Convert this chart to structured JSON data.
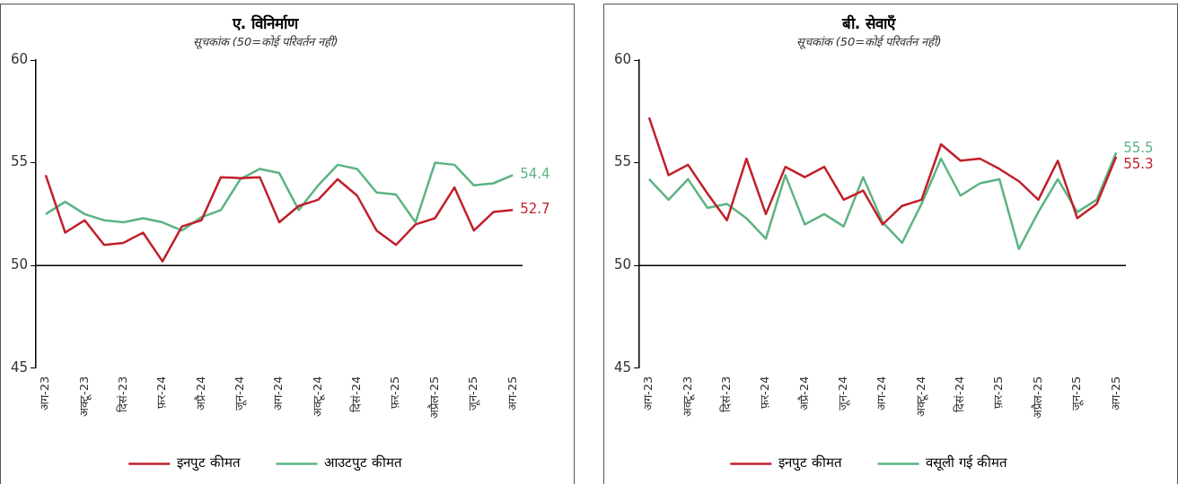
{
  "chart_data": [
    {
      "type": "line",
      "title": "ए. विनिर्माण",
      "subtitle": "सूचकांक (50=कोई परिवर्तन नहीं)",
      "categories": [
        "अग-23",
        null,
        "अक्टू-23",
        null,
        "दिसं-23",
        null,
        "फ़र-24",
        null,
        "अप्रै-24",
        null,
        "जून-24",
        null,
        "अग-24",
        null,
        "अक्टू-24",
        null,
        "दिसं-24",
        null,
        "फ़र-25",
        null,
        "अप्रैल-25",
        null,
        "जून-25",
        null,
        "अग-25"
      ],
      "series": [
        {
          "name": "इनपुट कीमत",
          "color": "#c0202a",
          "values": [
            54.4,
            51.6,
            52.2,
            51.0,
            51.1,
            51.6,
            50.2,
            51.9,
            52.2,
            54.3,
            54.25,
            54.3,
            52.1,
            52.9,
            53.2,
            54.2,
            53.4,
            51.7,
            51.0,
            52.0,
            52.3,
            53.8,
            51.7,
            52.6,
            52.7
          ],
          "value_labels": [
            null,
            null,
            null,
            null,
            null,
            null,
            null,
            null,
            null,
            null,
            null,
            null,
            null,
            null,
            null,
            null,
            null,
            null,
            null,
            null,
            null,
            null,
            null,
            null,
            "52.7"
          ]
        },
        {
          "name": "आउटपुट कीमत",
          "color": "#5db383",
          "values": [
            52.5,
            53.1,
            52.5,
            52.2,
            52.1,
            52.3,
            52.1,
            51.7,
            52.35,
            52.7,
            54.2,
            54.7,
            54.5,
            52.7,
            53.9,
            54.9,
            54.7,
            53.55,
            53.45,
            52.1,
            55.0,
            54.9,
            53.9,
            54.0,
            54.4
          ],
          "value_labels": [
            null,
            null,
            null,
            null,
            null,
            null,
            null,
            null,
            null,
            null,
            null,
            null,
            null,
            null,
            null,
            null,
            null,
            null,
            null,
            null,
            null,
            null,
            null,
            null,
            "54.4"
          ]
        }
      ],
      "ylim": [
        45,
        60
      ],
      "yticks": [
        45,
        50,
        55,
        60
      ],
      "grid": false,
      "legend": "bottom",
      "ref_lines": [
        {
          "axis": "y",
          "value": 50,
          "color": "#000000"
        }
      ]
    },
    {
      "type": "line",
      "title": "बी. सेवाएँ",
      "subtitle": "सूचकांक (50=कोई परिवर्तन नहीं)",
      "categories": [
        "अग-23",
        null,
        "अक्टू-23",
        null,
        "दिसं-23",
        null,
        "फ़र-24",
        null,
        "अप्रै-24",
        null,
        "जून-24",
        null,
        "अग-24",
        null,
        "अक्टू-24",
        null,
        "दिसं-24",
        null,
        "फ़र-25",
        null,
        "अप्रैल-25",
        null,
        "जून-25",
        null,
        "अग-25"
      ],
      "series": [
        {
          "name": "इनपुट कीमत",
          "color": "#c0202a",
          "values": [
            57.2,
            54.4,
            54.9,
            53.5,
            52.2,
            55.2,
            52.5,
            54.8,
            54.3,
            54.8,
            53.2,
            53.65,
            52.0,
            52.9,
            53.2,
            55.9,
            55.1,
            55.2,
            54.7,
            54.1,
            53.2,
            55.1,
            52.3,
            53.0,
            55.3
          ],
          "value_labels": [
            null,
            null,
            null,
            null,
            null,
            null,
            null,
            null,
            null,
            null,
            null,
            null,
            null,
            null,
            null,
            null,
            null,
            null,
            null,
            null,
            null,
            null,
            null,
            null,
            "55.3"
          ]
        },
        {
          "name": "वसूली गई कीमत",
          "color": "#5db383",
          "values": [
            54.2,
            53.2,
            54.2,
            52.8,
            53.0,
            52.3,
            51.3,
            54.4,
            52.0,
            52.5,
            51.9,
            54.3,
            52.1,
            51.1,
            53.0,
            55.2,
            53.4,
            54.0,
            54.2,
            50.8,
            52.6,
            54.2,
            52.6,
            53.2,
            55.5
          ],
          "value_labels": [
            null,
            null,
            null,
            null,
            null,
            null,
            null,
            null,
            null,
            null,
            null,
            null,
            null,
            null,
            null,
            null,
            null,
            null,
            null,
            null,
            null,
            null,
            null,
            null,
            "55.5"
          ]
        }
      ],
      "ylim": [
        45,
        60
      ],
      "yticks": [
        45,
        50,
        55,
        60
      ],
      "grid": false,
      "legend": "bottom",
      "ref_lines": [
        {
          "axis": "y",
          "value": 50,
          "color": "#000000"
        }
      ]
    }
  ]
}
